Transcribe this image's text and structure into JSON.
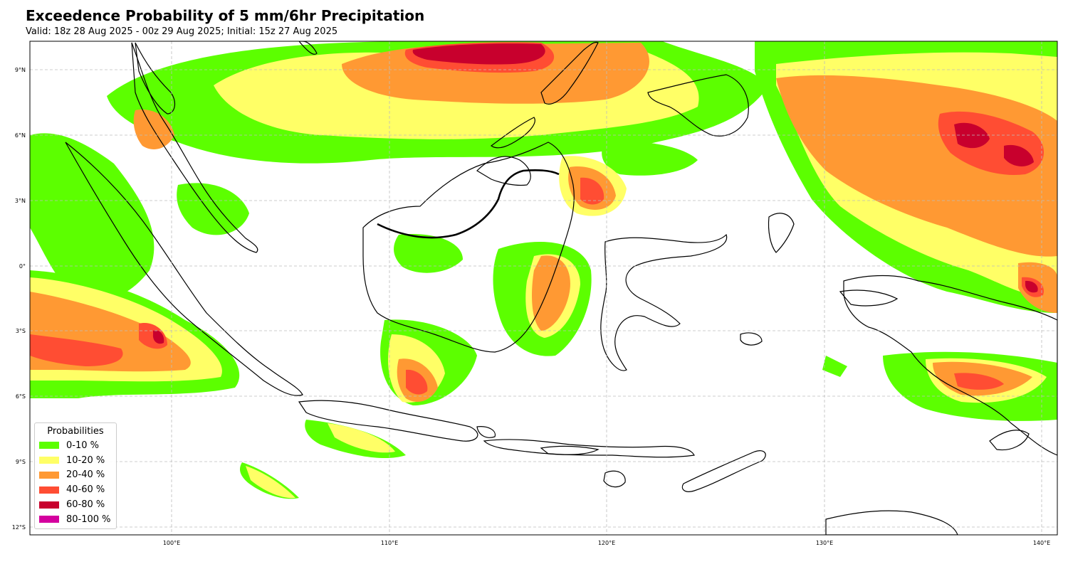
{
  "title": "Exceedence Probability of 5 mm/6hr Precipitation",
  "subtitle": "Valid: 18z 28 Aug 2025 - 00z 29 Aug 2025; Initial: 15z 27 Aug 2025",
  "map": {
    "lon_ticks": [
      "100°E",
      "110°E",
      "120°E",
      "130°E",
      "140°E"
    ],
    "lat_ticks": [
      "9°N",
      "6°N",
      "3°N",
      "0°",
      "3°S",
      "6°S",
      "9°S",
      "12°S"
    ],
    "lon_range": [
      93.5,
      140.7
    ],
    "lat_range": [
      -12.3,
      10.3
    ],
    "grid": true
  },
  "legend": {
    "title": "Probabilities",
    "items": [
      {
        "label": "0-10 %",
        "color": "#5cff00"
      },
      {
        "label": "10-20 %",
        "color": "#ffff66"
      },
      {
        "label": "20-40 %",
        "color": "#ff9933"
      },
      {
        "label": "40-60 %",
        "color": "#ff4d33"
      },
      {
        "label": "60-80 %",
        "color": "#c8002d"
      },
      {
        "label": "80-100 %",
        "color": "#d4009e"
      }
    ]
  }
}
